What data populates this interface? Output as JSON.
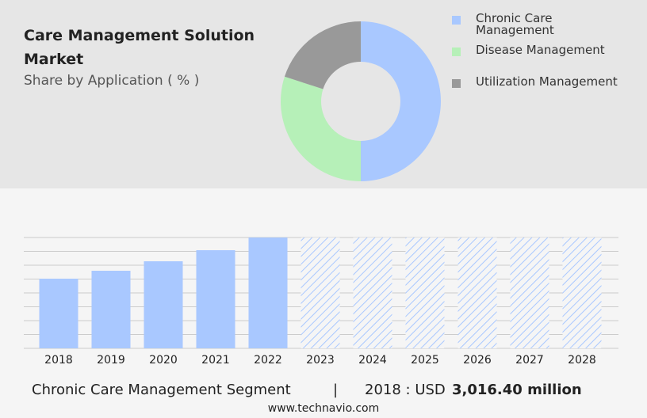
{
  "chart_data": [
    {
      "type": "donut",
      "title": "Care Management Solution Market",
      "subtitle": "Share by Application ( % )",
      "categories": [
        "Chronic Care Management",
        "Disease Management",
        "Utilization Management"
      ],
      "values": [
        50,
        30,
        20
      ],
      "colors": [
        "#a9c8ff",
        "#b6f0b8",
        "#999999"
      ]
    },
    {
      "type": "bar",
      "categories": [
        "2018",
        "2019",
        "2020",
        "2021",
        "2022",
        "2023",
        "2024",
        "2025",
        "2026",
        "2027",
        "2028"
      ],
      "values": [
        3016.4,
        3360,
        3770,
        4250,
        4800,
        null,
        null,
        null,
        null,
        null,
        null
      ],
      "color": "#a9c8ff",
      "ylim": [
        0,
        4800
      ],
      "grid": true
    }
  ],
  "footer": {
    "segment": "Chronic Care Management Segment",
    "separator": "|",
    "year_label": "2018 : USD",
    "value_label": "3,016.40 million",
    "source": "www.technavio.com"
  }
}
